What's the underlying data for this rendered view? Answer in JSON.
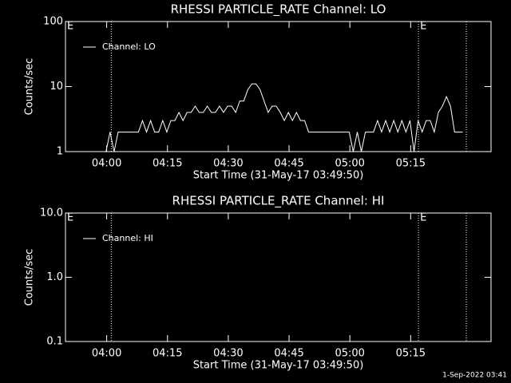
{
  "chart_data": [
    {
      "type": "line",
      "title": "RHESSI PARTICLE_RATE Channel: LO",
      "xlabel": "Start Time (31-May-17 03:49:50)",
      "ylabel": "Counts/sec",
      "log_y": true,
      "ylim": [
        1,
        100
      ],
      "yticks": [
        1,
        10,
        100
      ],
      "xlim": [
        0,
        105
      ],
      "xticks": [
        {
          "value": 10.17,
          "label": "04:00"
        },
        {
          "value": 25.17,
          "label": "04:15"
        },
        {
          "value": 40.17,
          "label": "04:30"
        },
        {
          "value": 55.17,
          "label": "04:45"
        },
        {
          "value": 70.17,
          "label": "05:00"
        },
        {
          "value": 85.17,
          "label": "05:15"
        }
      ],
      "vlines": [
        11.3,
        87.1,
        98.9
      ],
      "annotations": [
        {
          "x": 0,
          "text": "E"
        },
        {
          "x": 87.1,
          "text": "E"
        }
      ],
      "legend": "upper left",
      "series": [
        {
          "name": "Channel: LO",
          "color": "#ffffff",
          "x": [
            10,
            11,
            12,
            13,
            14,
            15,
            16,
            17,
            18,
            19,
            20,
            21,
            22,
            23,
            24,
            25,
            26,
            27,
            28,
            29,
            30,
            31,
            32,
            33,
            34,
            35,
            36,
            37,
            38,
            39,
            40,
            41,
            42,
            43,
            44,
            45,
            46,
            47,
            48,
            49,
            50,
            51,
            52,
            53,
            54,
            55,
            56,
            57,
            58,
            59,
            60,
            61,
            62,
            63,
            64,
            65,
            66,
            67,
            68,
            69,
            70,
            71,
            72,
            73,
            74,
            75,
            76,
            77,
            78,
            79,
            80,
            81,
            82,
            83,
            84,
            85,
            86,
            87,
            88,
            89,
            90,
            91,
            92,
            93,
            94,
            95,
            96,
            97,
            98
          ],
          "values": [
            1,
            2,
            1,
            2,
            2,
            2,
            2,
            2,
            2,
            3,
            2,
            3,
            2,
            2,
            3,
            2,
            3,
            3,
            4,
            3,
            4,
            4,
            5,
            4,
            4,
            5,
            4,
            4,
            5,
            4,
            5,
            5,
            4,
            6,
            6,
            9,
            11,
            11,
            9,
            6,
            4,
            5,
            5,
            4,
            3,
            4,
            3,
            4,
            3,
            3,
            2,
            2,
            2,
            2,
            2,
            2,
            2,
            2,
            2,
            2,
            2,
            1,
            2,
            1,
            2,
            2,
            2,
            3,
            2,
            3,
            2,
            3,
            2,
            3,
            2,
            3,
            1,
            3,
            2,
            3,
            3,
            2,
            4,
            5,
            7,
            5,
            2,
            2,
            2
          ]
        }
      ]
    },
    {
      "type": "line",
      "title": "RHESSI PARTICLE_RATE Channel: HI",
      "xlabel": "Start Time (31-May-17 03:49:50)",
      "ylabel": "Counts/sec",
      "log_y": true,
      "ylim": [
        0.1,
        10
      ],
      "yticks": [
        0.1,
        {
          "value": 1,
          "label": "1.0"
        },
        {
          "value": 10,
          "label": "10.0"
        }
      ],
      "xlim": [
        0,
        105
      ],
      "xticks": [
        {
          "value": 10.17,
          "label": "04:00"
        },
        {
          "value": 25.17,
          "label": "04:15"
        },
        {
          "value": 40.17,
          "label": "04:30"
        },
        {
          "value": 55.17,
          "label": "04:45"
        },
        {
          "value": 70.17,
          "label": "05:00"
        },
        {
          "value": 85.17,
          "label": "05:15"
        }
      ],
      "vlines": [
        11.3,
        87.1,
        98.9
      ],
      "annotations": [
        {
          "x": 0,
          "text": "E"
        },
        {
          "x": 87.1,
          "text": "E"
        }
      ],
      "legend": "upper left",
      "series": [
        {
          "name": "Channel: HI",
          "color": "#ffffff",
          "x": [],
          "values": []
        }
      ]
    }
  ],
  "footer": "1-Sep-2022 03:41"
}
